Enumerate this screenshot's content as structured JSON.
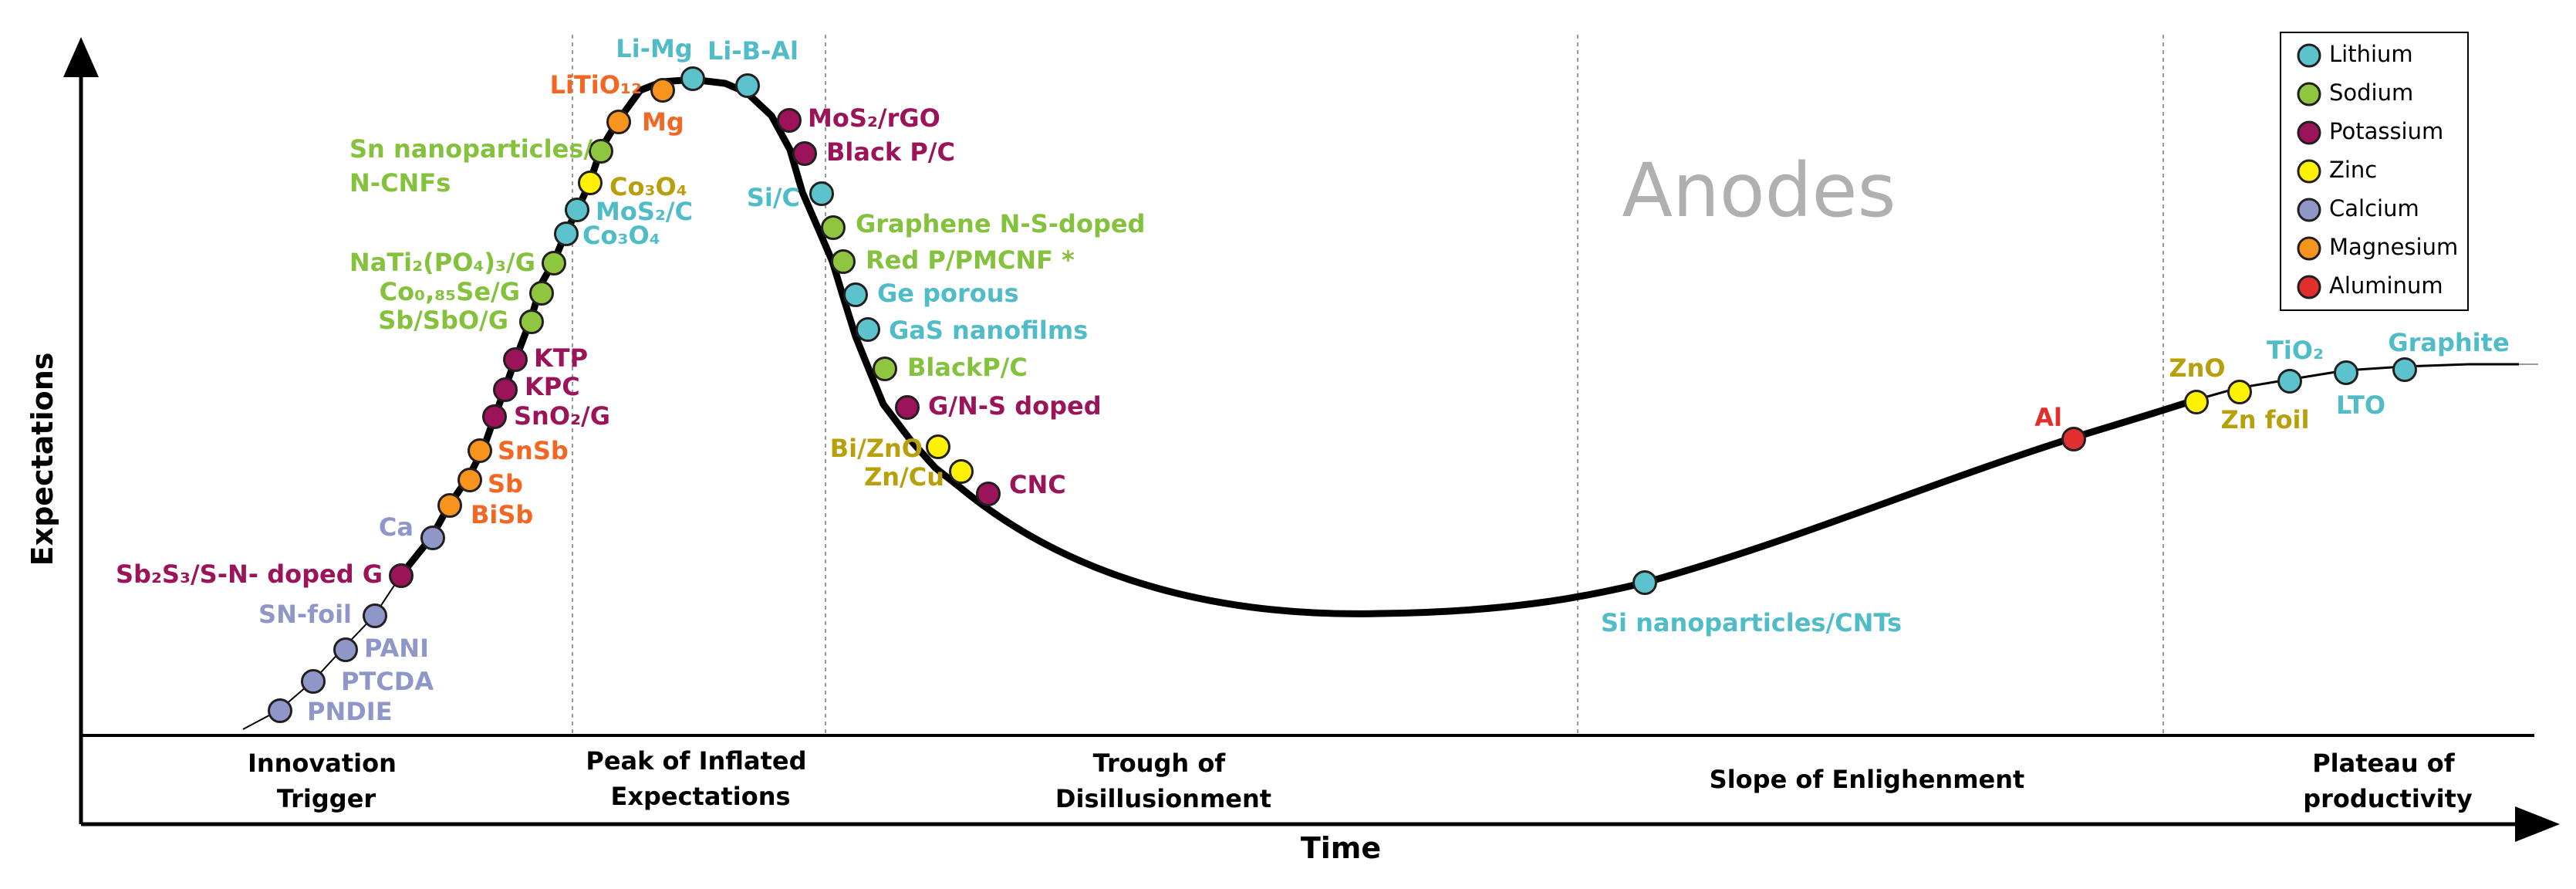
{
  "title": "Anodes",
  "axes": {
    "x_label": "Time",
    "y_label": "Expectations"
  },
  "phases": [
    {
      "lines": [
        "Innovation",
        "Trigger"
      ]
    },
    {
      "lines": [
        "Peak of Inflated",
        "Expectations"
      ]
    },
    {
      "lines": [
        "Trough of",
        "Disillusionment"
      ]
    },
    {
      "lines": [
        "Slope of Enlighenment"
      ]
    },
    {
      "lines": [
        "Plateau of",
        "productivity"
      ]
    }
  ],
  "legend": {
    "items": [
      {
        "key": "lithium",
        "label": "Lithium"
      },
      {
        "key": "sodium",
        "label": "Sodium"
      },
      {
        "key": "potassium",
        "label": "Potassium"
      },
      {
        "key": "zinc",
        "label": "Zinc"
      },
      {
        "key": "calcium",
        "label": "Calcium"
      },
      {
        "key": "magnesium",
        "label": "Magnesium"
      },
      {
        "key": "aluminum",
        "label": "Aluminum"
      }
    ]
  },
  "colors": {
    "lithium": {
      "fill": "#5cc3cc",
      "text": "#4fbcc7"
    },
    "sodium": {
      "fill": "#8ec63f",
      "text": "#84c13c"
    },
    "potassium": {
      "fill": "#9b1459",
      "text": "#9b1459"
    },
    "zinc": {
      "fill": "#fff200",
      "text": "#b8a00c"
    },
    "calcium": {
      "fill": "#8e97c8",
      "text": "#8e97c8"
    },
    "magnesium": {
      "fill": "#f7941d",
      "text": "#f26722"
    },
    "aluminum": {
      "fill": "#e0302d",
      "text": "#e0302d"
    }
  },
  "technologies": [
    {
      "label": "PNDIE",
      "type": "calcium"
    },
    {
      "label": "PTCDA",
      "type": "calcium"
    },
    {
      "label": "PANI",
      "type": "calcium"
    },
    {
      "label": "SN-foil",
      "type": "calcium"
    },
    {
      "label": "Sb₂S₃/S-N- doped G",
      "type": "potassium"
    },
    {
      "label": "Ca",
      "type": "calcium"
    },
    {
      "label": "BiSb",
      "type": "magnesium"
    },
    {
      "label": "Sb",
      "type": "magnesium"
    },
    {
      "label": "SnSb",
      "type": "magnesium"
    },
    {
      "label": "SnO₂/G",
      "type": "potassium"
    },
    {
      "label": "KPC",
      "type": "potassium"
    },
    {
      "label": "KTP",
      "type": "potassium"
    },
    {
      "label": "Sb/SbO/G",
      "type": "sodium"
    },
    {
      "label": "Co₀,₈₅Se/G",
      "type": "sodium"
    },
    {
      "label": "NaTi₂(PO₄)₃/G",
      "type": "sodium"
    },
    {
      "label": "Co₃O₄",
      "type": "lithium"
    },
    {
      "label": "MoS₂/C",
      "type": "lithium"
    },
    {
      "label": "Co₃O₄",
      "type": "zinc"
    },
    {
      "label": "Sn nanoparticles/\nN-CNFs",
      "type": "sodium"
    },
    {
      "label": "Mg",
      "type": "magnesium"
    },
    {
      "label": "LiTiO₁₂",
      "type": "magnesium"
    },
    {
      "label": "Li-Mg",
      "type": "lithium"
    },
    {
      "label": "Li-B-Al",
      "type": "lithium"
    },
    {
      "label": "MoS₂/rGO",
      "type": "potassium"
    },
    {
      "label": "Black P/C",
      "type": "potassium"
    },
    {
      "label": "Si/C",
      "type": "lithium"
    },
    {
      "label": "Graphene N-S-doped",
      "type": "sodium"
    },
    {
      "label": "Red P/PMCNF *",
      "type": "sodium"
    },
    {
      "label": "Ge porous",
      "type": "lithium"
    },
    {
      "label": "GaS nanofilms",
      "type": "lithium"
    },
    {
      "label": "BlackP/C",
      "type": "sodium"
    },
    {
      "label": "G/N-S doped",
      "type": "potassium"
    },
    {
      "label": "Bi/ZnO",
      "type": "zinc"
    },
    {
      "label": "Zn/Cu",
      "type": "zinc"
    },
    {
      "label": "CNC",
      "type": "potassium"
    },
    {
      "label": "Si nanoparticles/CNTs",
      "type": "lithium"
    },
    {
      "label": "Al",
      "type": "aluminum"
    },
    {
      "label": "ZnO",
      "type": "zinc"
    },
    {
      "label": "Zn foil",
      "type": "zinc"
    },
    {
      "label": "TiO₂",
      "type": "lithium"
    },
    {
      "label": "LTO",
      "type": "lithium"
    },
    {
      "label": "Graphite",
      "type": "lithium"
    }
  ]
}
